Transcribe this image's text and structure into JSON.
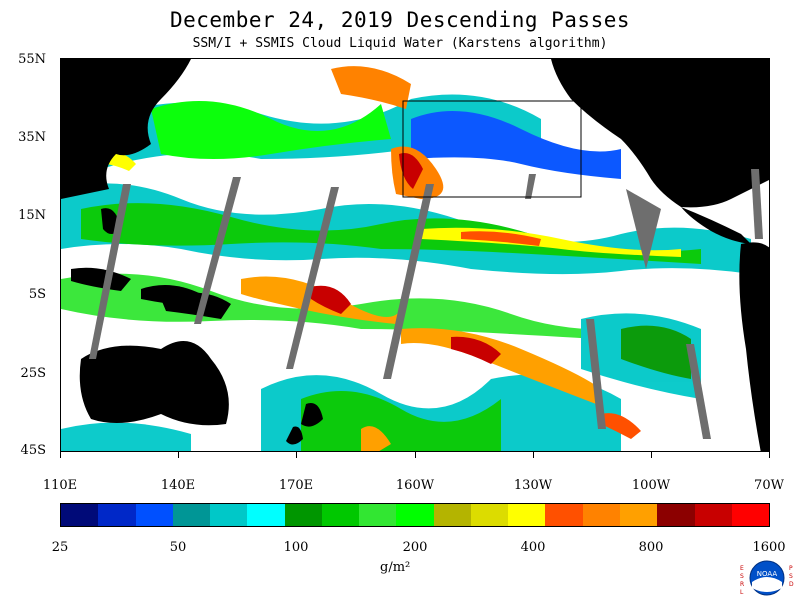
{
  "header": {
    "title": "December 24, 2019  Descending Passes",
    "subtitle": "SSM/I + SSMIS Cloud Liquid Water (Karstens algorithm)"
  },
  "map": {
    "lat_labels": [
      "55N",
      "35N",
      "15N",
      "5S",
      "25S",
      "45S"
    ],
    "lon_labels": [
      "110E",
      "140E",
      "170E",
      "160W",
      "130W",
      "100W",
      "70W"
    ],
    "colors": {
      "land": "#000000",
      "no_data_swath_gap": "#6e6e6e",
      "clear": "#ffffff",
      "box": "#000000"
    }
  },
  "colorbar": {
    "colors": [
      "#000a78",
      "#0028c8",
      "#0050ff",
      "#009696",
      "#00c8c8",
      "#00ffff",
      "#009600",
      "#00c800",
      "#32e632",
      "#00ff00",
      "#b4b400",
      "#dcdc00",
      "#ffff00",
      "#ff5000",
      "#ff8200",
      "#ffa000",
      "#8c0000",
      "#c80000",
      "#ff0000"
    ],
    "labels": [
      "25",
      "50",
      "100",
      "200",
      "400",
      "800",
      "1600"
    ],
    "units": "g/m²"
  },
  "logo": {
    "text": "NOAA",
    "side_left": "ESRL",
    "side_right": "PSD"
  }
}
